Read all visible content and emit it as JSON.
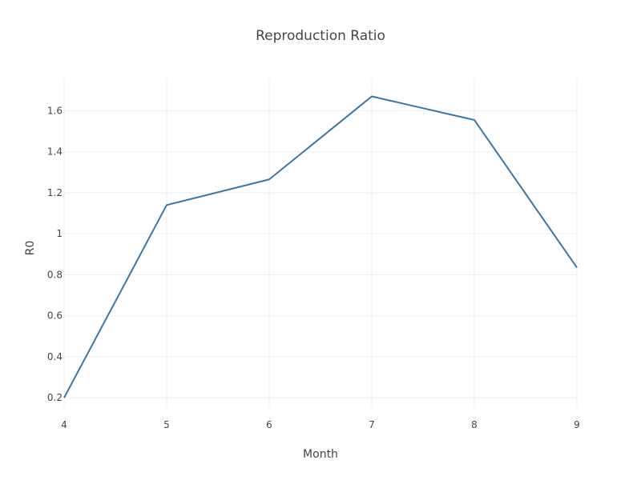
{
  "chart_data": {
    "type": "line",
    "title": "Reproduction Ratio",
    "xlabel": "Month",
    "ylabel": "R0",
    "x": [
      4,
      5,
      6,
      7,
      8,
      9
    ],
    "series": [
      {
        "values": [
          0.2,
          1.14,
          1.265,
          1.67,
          1.555,
          0.835
        ],
        "color": "#3a76a3"
      }
    ],
    "xlim": [
      4,
      9
    ],
    "ylim": [
      0.15,
      1.75
    ],
    "xticks": [
      4,
      5,
      6,
      7,
      8,
      9
    ],
    "yticks": [
      0.2,
      0.4,
      0.6,
      0.8,
      1,
      1.2,
      1.4,
      1.6
    ],
    "ytick_labels": [
      "0.2",
      "0.4",
      "0.6",
      "0.8",
      "1",
      "1.2",
      "1.4",
      "1.6"
    ],
    "grid": true,
    "legend": false
  }
}
